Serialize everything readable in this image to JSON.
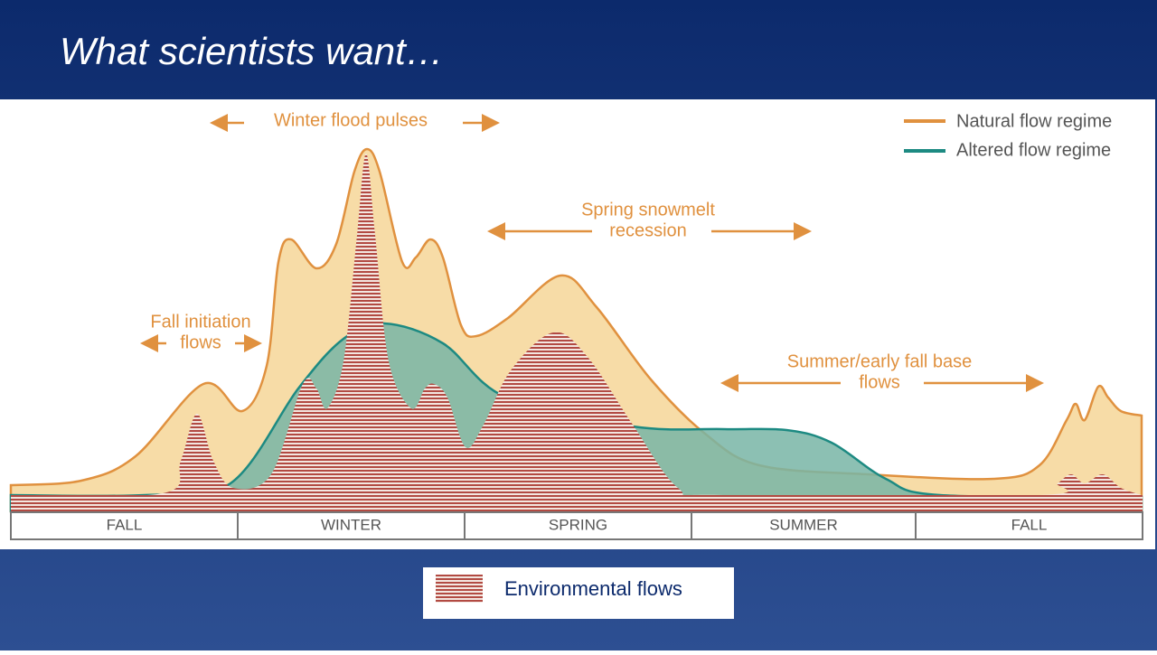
{
  "title": "What scientists want…",
  "annotations": {
    "winter": [
      "Winter flood pulses"
    ],
    "fall_initiation": [
      "Fall initiation",
      "flows"
    ],
    "spring": [
      "Spring snowmelt",
      "recession"
    ],
    "summer": [
      "Summer/early fall base",
      "flows"
    ]
  },
  "legend": [
    "Natural flow regime",
    "Altered flow regime"
  ],
  "seasons": [
    "FALL",
    "WINTER",
    "SPRING",
    "SUMMER",
    "FALL"
  ],
  "environmental_legend": "Environmental flows"
}
